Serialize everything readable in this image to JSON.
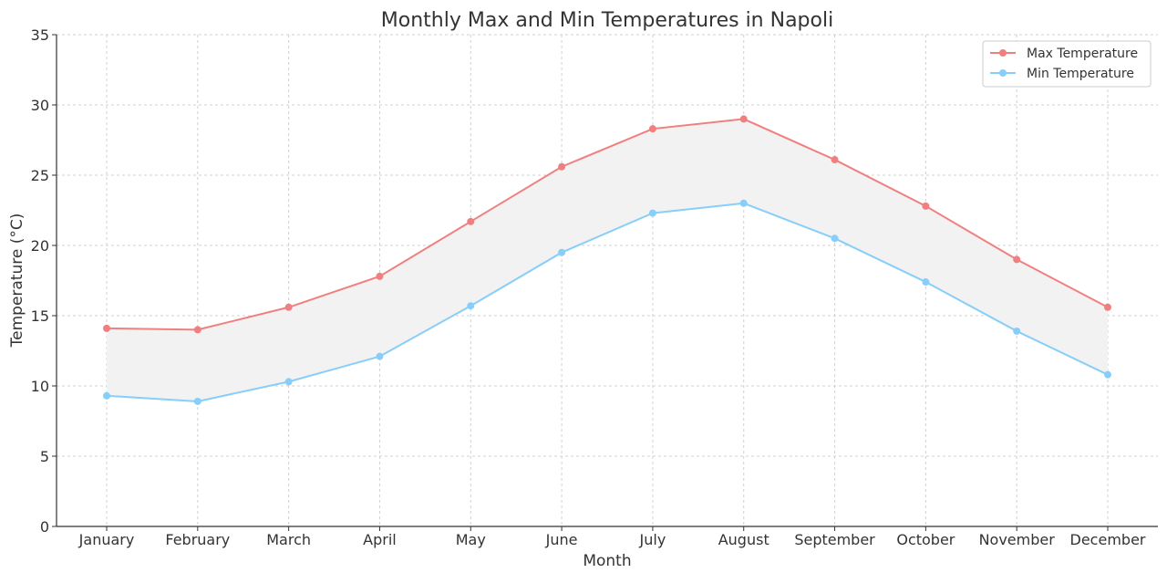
{
  "chart_data": {
    "type": "line",
    "title": "Monthly Max and Min Temperatures in Napoli",
    "xlabel": "Month",
    "ylabel": "Temperature (°C)",
    "categories": [
      "January",
      "February",
      "March",
      "April",
      "May",
      "June",
      "July",
      "August",
      "September",
      "October",
      "November",
      "December"
    ],
    "ylim": [
      0,
      35
    ],
    "yticks": [
      0,
      5,
      10,
      15,
      20,
      25,
      30,
      35
    ],
    "grid": true,
    "legend_position": "top-right",
    "fill_between": {
      "color": "#f2f2f2"
    },
    "series": [
      {
        "name": "Max Temperature",
        "color": "#f08080",
        "values": [
          14.1,
          14.0,
          15.6,
          17.8,
          21.7,
          25.6,
          28.3,
          29.0,
          26.1,
          22.8,
          19.0,
          15.6
        ]
      },
      {
        "name": "Min Temperature",
        "color": "#87cefa",
        "values": [
          9.3,
          8.9,
          10.3,
          12.1,
          15.7,
          19.5,
          22.3,
          23.0,
          20.5,
          17.4,
          13.9,
          10.8
        ]
      }
    ]
  }
}
